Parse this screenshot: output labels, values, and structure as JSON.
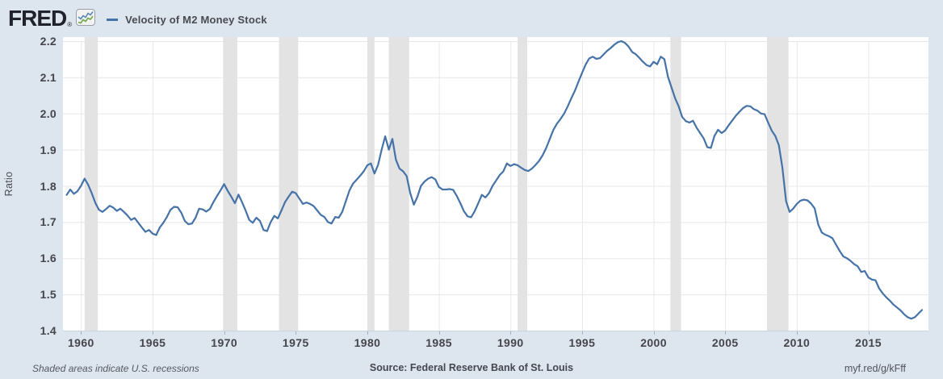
{
  "header": {
    "logo_text": "FRED",
    "registered_mark": "®",
    "legend_dash": "—",
    "legend_label": "Velocity of M2 Money Stock"
  },
  "footer": {
    "note": "Shaded areas indicate U.S. recessions",
    "source": "Source: Federal Reserve Bank of St. Louis",
    "shortlink": "myf.red/g/kFff"
  },
  "colors": {
    "background": "#dde6ef",
    "plot_background": "#ffffff",
    "gridline": "#e8e8e8",
    "recession_band": "#e3e3e3",
    "line": "#4572a7",
    "bottom_axis": "#c9d4e1",
    "tick_mark": "#9db1c8",
    "axis_text": "#45454b",
    "logo": "#20232b",
    "badge_line_blue": "#5b87b7",
    "badge_line_green": "#71a747"
  },
  "chart_data": {
    "type": "line",
    "title": "Velocity of M2 Money Stock",
    "xlabel": "",
    "ylabel": "Ratio",
    "frequency": "quarterly",
    "grid": true,
    "legend_position": "top-left",
    "xlim": [
      1958.74,
      2019.2
    ],
    "ylim": [
      1.4,
      2.2
    ],
    "x_ticks": [
      1960,
      1965,
      1970,
      1975,
      1980,
      1985,
      1990,
      1995,
      2000,
      2005,
      2010,
      2015
    ],
    "y_ticks": [
      1.4,
      1.5,
      1.6,
      1.7,
      1.8,
      1.9,
      2.0,
      2.1,
      2.2
    ],
    "recessions": [
      [
        1960.25,
        1961.17
      ],
      [
        1969.92,
        1970.92
      ],
      [
        1973.83,
        1975.17
      ],
      [
        1980.0,
        1980.5
      ],
      [
        1981.5,
        1982.92
      ],
      [
        1990.5,
        1991.17
      ],
      [
        2001.17,
        2001.92
      ],
      [
        2007.92,
        2009.42
      ]
    ],
    "series": [
      {
        "name": "Velocity of M2 Money Stock",
        "color": "#4572a7",
        "points": [
          [
            1959.0,
            1.775
          ],
          [
            1959.25,
            1.79
          ],
          [
            1959.5,
            1.778
          ],
          [
            1959.75,
            1.785
          ],
          [
            1960.0,
            1.8
          ],
          [
            1960.25,
            1.82
          ],
          [
            1960.5,
            1.803
          ],
          [
            1960.75,
            1.78
          ],
          [
            1961.0,
            1.753
          ],
          [
            1961.25,
            1.734
          ],
          [
            1961.5,
            1.728
          ],
          [
            1961.75,
            1.736
          ],
          [
            1962.0,
            1.745
          ],
          [
            1962.25,
            1.74
          ],
          [
            1962.5,
            1.731
          ],
          [
            1962.75,
            1.737
          ],
          [
            1963.0,
            1.728
          ],
          [
            1963.25,
            1.718
          ],
          [
            1963.5,
            1.706
          ],
          [
            1963.75,
            1.711
          ],
          [
            1964.0,
            1.698
          ],
          [
            1964.25,
            1.685
          ],
          [
            1964.5,
            1.673
          ],
          [
            1964.75,
            1.678
          ],
          [
            1965.0,
            1.668
          ],
          [
            1965.25,
            1.664
          ],
          [
            1965.5,
            1.685
          ],
          [
            1965.75,
            1.698
          ],
          [
            1966.0,
            1.714
          ],
          [
            1966.25,
            1.734
          ],
          [
            1966.5,
            1.742
          ],
          [
            1966.75,
            1.741
          ],
          [
            1967.0,
            1.726
          ],
          [
            1967.25,
            1.703
          ],
          [
            1967.5,
            1.694
          ],
          [
            1967.75,
            1.696
          ],
          [
            1968.0,
            1.712
          ],
          [
            1968.25,
            1.737
          ],
          [
            1968.5,
            1.735
          ],
          [
            1968.75,
            1.729
          ],
          [
            1969.0,
            1.736
          ],
          [
            1969.25,
            1.755
          ],
          [
            1969.5,
            1.772
          ],
          [
            1969.75,
            1.788
          ],
          [
            1970.0,
            1.805
          ],
          [
            1970.25,
            1.786
          ],
          [
            1970.5,
            1.77
          ],
          [
            1970.75,
            1.752
          ],
          [
            1971.0,
            1.776
          ],
          [
            1971.25,
            1.755
          ],
          [
            1971.5,
            1.732
          ],
          [
            1971.75,
            1.706
          ],
          [
            1972.0,
            1.698
          ],
          [
            1972.25,
            1.712
          ],
          [
            1972.5,
            1.703
          ],
          [
            1972.75,
            1.678
          ],
          [
            1973.0,
            1.675
          ],
          [
            1973.25,
            1.7
          ],
          [
            1973.5,
            1.717
          ],
          [
            1973.75,
            1.71
          ],
          [
            1974.0,
            1.732
          ],
          [
            1974.25,
            1.755
          ],
          [
            1974.5,
            1.77
          ],
          [
            1974.75,
            1.784
          ],
          [
            1975.0,
            1.78
          ],
          [
            1975.25,
            1.765
          ],
          [
            1975.5,
            1.75
          ],
          [
            1975.75,
            1.754
          ],
          [
            1976.0,
            1.75
          ],
          [
            1976.25,
            1.744
          ],
          [
            1976.5,
            1.732
          ],
          [
            1976.75,
            1.72
          ],
          [
            1977.0,
            1.714
          ],
          [
            1977.25,
            1.7
          ],
          [
            1977.5,
            1.696
          ],
          [
            1977.75,
            1.714
          ],
          [
            1978.0,
            1.712
          ],
          [
            1978.25,
            1.728
          ],
          [
            1978.5,
            1.758
          ],
          [
            1978.75,
            1.787
          ],
          [
            1979.0,
            1.806
          ],
          [
            1979.25,
            1.817
          ],
          [
            1979.5,
            1.828
          ],
          [
            1979.75,
            1.84
          ],
          [
            1980.0,
            1.857
          ],
          [
            1980.25,
            1.862
          ],
          [
            1980.5,
            1.834
          ],
          [
            1980.75,
            1.858
          ],
          [
            1981.0,
            1.9
          ],
          [
            1981.25,
            1.937
          ],
          [
            1981.5,
            1.9
          ],
          [
            1981.75,
            1.93
          ],
          [
            1982.0,
            1.872
          ],
          [
            1982.25,
            1.848
          ],
          [
            1982.5,
            1.84
          ],
          [
            1982.75,
            1.827
          ],
          [
            1983.0,
            1.78
          ],
          [
            1983.25,
            1.748
          ],
          [
            1983.5,
            1.77
          ],
          [
            1983.75,
            1.8
          ],
          [
            1984.0,
            1.812
          ],
          [
            1984.25,
            1.82
          ],
          [
            1984.5,
            1.824
          ],
          [
            1984.75,
            1.818
          ],
          [
            1985.0,
            1.797
          ],
          [
            1985.25,
            1.79
          ],
          [
            1985.5,
            1.79
          ],
          [
            1985.75,
            1.791
          ],
          [
            1986.0,
            1.789
          ],
          [
            1986.25,
            1.772
          ],
          [
            1986.5,
            1.752
          ],
          [
            1986.75,
            1.73
          ],
          [
            1987.0,
            1.716
          ],
          [
            1987.25,
            1.713
          ],
          [
            1987.5,
            1.73
          ],
          [
            1987.75,
            1.752
          ],
          [
            1988.0,
            1.775
          ],
          [
            1988.25,
            1.768
          ],
          [
            1988.5,
            1.78
          ],
          [
            1988.75,
            1.8
          ],
          [
            1989.0,
            1.815
          ],
          [
            1989.25,
            1.83
          ],
          [
            1989.5,
            1.84
          ],
          [
            1989.75,
            1.862
          ],
          [
            1990.0,
            1.855
          ],
          [
            1990.25,
            1.86
          ],
          [
            1990.5,
            1.857
          ],
          [
            1990.75,
            1.85
          ],
          [
            1991.0,
            1.844
          ],
          [
            1991.25,
            1.841
          ],
          [
            1991.5,
            1.848
          ],
          [
            1991.75,
            1.858
          ],
          [
            1992.0,
            1.869
          ],
          [
            1992.25,
            1.885
          ],
          [
            1992.5,
            1.905
          ],
          [
            1992.75,
            1.93
          ],
          [
            1993.0,
            1.955
          ],
          [
            1993.25,
            1.972
          ],
          [
            1993.5,
            1.985
          ],
          [
            1993.75,
            2.0
          ],
          [
            1994.0,
            2.02
          ],
          [
            1994.25,
            2.042
          ],
          [
            1994.5,
            2.063
          ],
          [
            1994.75,
            2.088
          ],
          [
            1995.0,
            2.112
          ],
          [
            1995.25,
            2.135
          ],
          [
            1995.5,
            2.152
          ],
          [
            1995.75,
            2.157
          ],
          [
            1996.0,
            2.151
          ],
          [
            1996.25,
            2.153
          ],
          [
            1996.5,
            2.163
          ],
          [
            1996.75,
            2.173
          ],
          [
            1997.0,
            2.181
          ],
          [
            1997.25,
            2.19
          ],
          [
            1997.5,
            2.197
          ],
          [
            1997.75,
            2.2
          ],
          [
            1998.0,
            2.195
          ],
          [
            1998.25,
            2.185
          ],
          [
            1998.5,
            2.17
          ],
          [
            1998.75,
            2.164
          ],
          [
            1999.0,
            2.154
          ],
          [
            1999.25,
            2.143
          ],
          [
            1999.5,
            2.134
          ],
          [
            1999.75,
            2.13
          ],
          [
            2000.0,
            2.143
          ],
          [
            2000.25,
            2.136
          ],
          [
            2000.5,
            2.157
          ],
          [
            2000.75,
            2.15
          ],
          [
            2001.0,
            2.102
          ],
          [
            2001.25,
            2.072
          ],
          [
            2001.5,
            2.042
          ],
          [
            2001.75,
            2.02
          ],
          [
            2002.0,
            1.99
          ],
          [
            2002.25,
            1.979
          ],
          [
            2002.5,
            1.975
          ],
          [
            2002.75,
            1.98
          ],
          [
            2003.0,
            1.961
          ],
          [
            2003.25,
            1.946
          ],
          [
            2003.5,
            1.931
          ],
          [
            2003.75,
            1.907
          ],
          [
            2004.0,
            1.905
          ],
          [
            2004.25,
            1.938
          ],
          [
            2004.5,
            1.955
          ],
          [
            2004.75,
            1.946
          ],
          [
            2005.0,
            1.953
          ],
          [
            2005.25,
            1.968
          ],
          [
            2005.5,
            1.981
          ],
          [
            2005.75,
            1.994
          ],
          [
            2006.0,
            2.005
          ],
          [
            2006.25,
            2.015
          ],
          [
            2006.5,
            2.021
          ],
          [
            2006.75,
            2.02
          ],
          [
            2007.0,
            2.012
          ],
          [
            2007.25,
            2.008
          ],
          [
            2007.5,
            2.0
          ],
          [
            2007.75,
            1.998
          ],
          [
            2008.0,
            1.975
          ],
          [
            2008.25,
            1.953
          ],
          [
            2008.5,
            1.938
          ],
          [
            2008.75,
            1.912
          ],
          [
            2009.0,
            1.85
          ],
          [
            2009.25,
            1.758
          ],
          [
            2009.5,
            1.728
          ],
          [
            2009.75,
            1.737
          ],
          [
            2010.0,
            1.75
          ],
          [
            2010.25,
            1.759
          ],
          [
            2010.5,
            1.762
          ],
          [
            2010.75,
            1.76
          ],
          [
            2011.0,
            1.751
          ],
          [
            2011.25,
            1.738
          ],
          [
            2011.5,
            1.693
          ],
          [
            2011.75,
            1.671
          ],
          [
            2012.0,
            1.665
          ],
          [
            2012.25,
            1.661
          ],
          [
            2012.5,
            1.655
          ],
          [
            2012.75,
            1.637
          ],
          [
            2013.0,
            1.62
          ],
          [
            2013.25,
            1.605
          ],
          [
            2013.5,
            1.6
          ],
          [
            2013.75,
            1.593
          ],
          [
            2014.0,
            1.584
          ],
          [
            2014.25,
            1.578
          ],
          [
            2014.5,
            1.562
          ],
          [
            2014.75,
            1.565
          ],
          [
            2015.0,
            1.547
          ],
          [
            2015.25,
            1.541
          ],
          [
            2015.5,
            1.539
          ],
          [
            2015.75,
            1.517
          ],
          [
            2016.0,
            1.503
          ],
          [
            2016.25,
            1.492
          ],
          [
            2016.5,
            1.483
          ],
          [
            2016.75,
            1.472
          ],
          [
            2017.0,
            1.464
          ],
          [
            2017.25,
            1.456
          ],
          [
            2017.5,
            1.445
          ],
          [
            2017.75,
            1.437
          ],
          [
            2018.0,
            1.433
          ],
          [
            2018.25,
            1.437
          ],
          [
            2018.5,
            1.447
          ],
          [
            2018.75,
            1.457
          ]
        ]
      }
    ]
  }
}
